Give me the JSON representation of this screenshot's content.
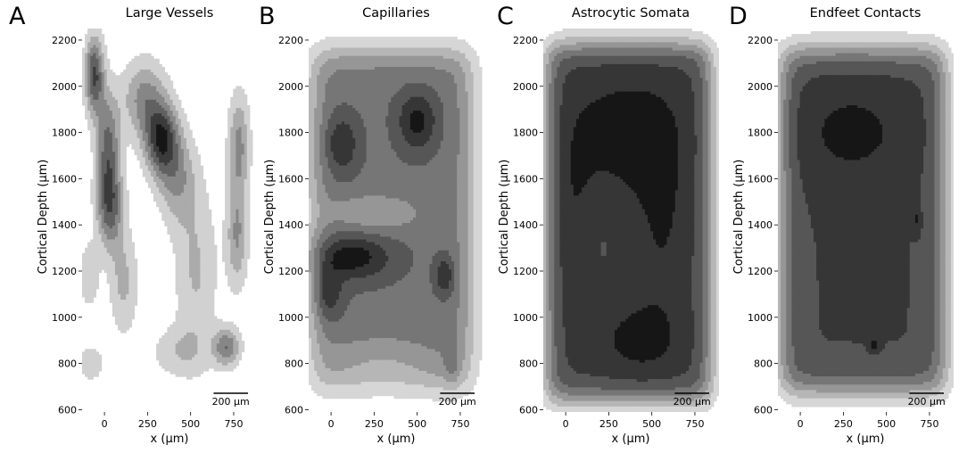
{
  "chart_data": [
    {
      "type": "heatmap",
      "subtype": "filled-contour",
      "panel_letter": "A",
      "title": "Large Vessels",
      "xlabel": "x (µm)",
      "ylabel": "Cortical Depth (µm)",
      "xticks": [
        0,
        250,
        500,
        750
      ],
      "yticks": [
        600,
        800,
        1000,
        1200,
        1400,
        1600,
        1800,
        2000,
        2200
      ],
      "xlim": [
        -130,
        890
      ],
      "ylim": [
        590,
        2250
      ],
      "scale_bar_label": "200 µm",
      "scale_bar_um": 200,
      "colormap": "greys",
      "grid": false,
      "levels": 6,
      "peaks": [
        {
          "x": -60,
          "y": 2050,
          "amp": 0.95,
          "sx": 40,
          "sy": 120
        },
        {
          "x": 20,
          "y": 1750,
          "amp": 0.75,
          "sx": 50,
          "sy": 160
        },
        {
          "x": 30,
          "y": 1480,
          "amp": 0.8,
          "sx": 55,
          "sy": 130
        },
        {
          "x": 110,
          "y": 1150,
          "amp": 0.4,
          "sx": 60,
          "sy": 160
        },
        {
          "x": 330,
          "y": 1770,
          "amp": 1.0,
          "sx": 70,
          "sy": 110
        },
        {
          "x": 230,
          "y": 1950,
          "amp": 0.6,
          "sx": 90,
          "sy": 120
        },
        {
          "x": 420,
          "y": 1600,
          "amp": 0.5,
          "sx": 80,
          "sy": 140
        },
        {
          "x": 530,
          "y": 1200,
          "amp": 0.38,
          "sx": 90,
          "sy": 260
        },
        {
          "x": 780,
          "y": 1750,
          "amp": 0.6,
          "sx": 45,
          "sy": 160
        },
        {
          "x": 770,
          "y": 1350,
          "amp": 0.55,
          "sx": 45,
          "sy": 160
        },
        {
          "x": 710,
          "y": 870,
          "amp": 0.7,
          "sx": 55,
          "sy": 60
        },
        {
          "x": 430,
          "y": 850,
          "amp": 0.3,
          "sx": 120,
          "sy": 80
        },
        {
          "x": -90,
          "y": 1180,
          "amp": 0.35,
          "sx": 40,
          "sy": 100
        },
        {
          "x": -80,
          "y": 800,
          "amp": 0.3,
          "sx": 60,
          "sy": 60
        }
      ],
      "background": 0.02
    },
    {
      "type": "heatmap",
      "subtype": "filled-contour",
      "panel_letter": "B",
      "title": "Capillaries",
      "xlabel": "x (µm)",
      "ylabel": "Cortical Depth (µm)",
      "xticks": [
        0,
        250,
        500,
        750
      ],
      "yticks": [
        600,
        800,
        1000,
        1200,
        1400,
        1600,
        1800,
        2000,
        2200
      ],
      "xlim": [
        -130,
        890
      ],
      "ylim": [
        590,
        2250
      ],
      "scale_bar_label": "200 µm",
      "scale_bar_um": 200,
      "colormap": "greys",
      "grid": false,
      "levels": 7,
      "box": {
        "x0": -110,
        "x1": 810,
        "y0": 700,
        "y1": 2150,
        "level": 0.62,
        "soft": 45
      },
      "peaks": [
        {
          "x": 60,
          "y": 1750,
          "amp": 0.3,
          "sx": 70,
          "sy": 90
        },
        {
          "x": 500,
          "y": 1850,
          "amp": 0.35,
          "sx": 80,
          "sy": 90
        },
        {
          "x": 120,
          "y": 1260,
          "amp": 0.38,
          "sx": 160,
          "sy": 70
        },
        {
          "x": -20,
          "y": 1100,
          "amp": 0.3,
          "sx": 60,
          "sy": 80
        },
        {
          "x": 660,
          "y": 1180,
          "amp": 0.3,
          "sx": 40,
          "sy": 60
        },
        {
          "x": 250,
          "y": 1450,
          "amp": -0.22,
          "sx": 200,
          "sy": 60
        },
        {
          "x": 300,
          "y": 800,
          "amp": -0.2,
          "sx": 250,
          "sy": 90
        },
        {
          "x": 700,
          "y": 780,
          "amp": 0.15,
          "sx": 30,
          "sy": 60
        }
      ],
      "background": 0.02
    },
    {
      "type": "heatmap",
      "subtype": "filled-contour",
      "panel_letter": "C",
      "title": "Astrocytic Somata",
      "xlabel": "x (µm)",
      "ylabel": "Cortical Depth (µm)",
      "xticks": [
        0,
        250,
        500,
        750
      ],
      "yticks": [
        600,
        800,
        1000,
        1200,
        1400,
        1600,
        1800,
        2000,
        2200
      ],
      "xlim": [
        -130,
        890
      ],
      "ylim": [
        590,
        2250
      ],
      "scale_bar_label": "200 µm",
      "scale_bar_um": 200,
      "colormap": "greys",
      "grid": false,
      "levels": 7,
      "box": {
        "x0": -110,
        "x1": 840,
        "y0": 640,
        "y1": 2180,
        "level": 0.82,
        "soft": 38
      },
      "peaks": [
        {
          "x": 350,
          "y": 1800,
          "amp": 0.18,
          "sx": 250,
          "sy": 200
        },
        {
          "x": 50,
          "y": 1400,
          "amp": 0.12,
          "sx": 90,
          "sy": 300
        },
        {
          "x": 420,
          "y": 900,
          "amp": 0.16,
          "sx": 180,
          "sy": 120
        },
        {
          "x": 560,
          "y": 1400,
          "amp": 0.12,
          "sx": 120,
          "sy": 300
        },
        {
          "x": 160,
          "y": 1350,
          "amp": -0.06,
          "sx": 90,
          "sy": 150
        }
      ],
      "background": 0.01
    },
    {
      "type": "heatmap",
      "subtype": "filled-contour",
      "panel_letter": "D",
      "title": "Endfeet Contacts",
      "xlabel": "x (µm)",
      "ylabel": "Cortical Depth (µm)",
      "xticks": [
        0,
        250,
        500,
        750
      ],
      "yticks": [
        600,
        800,
        1000,
        1200,
        1400,
        1600,
        1800,
        2000,
        2200
      ],
      "xlim": [
        -130,
        890
      ],
      "ylim": [
        590,
        2250
      ],
      "scale_bar_label": "200 µm",
      "scale_bar_um": 200,
      "colormap": "greys",
      "grid": false,
      "levels": 7,
      "box": {
        "x0": -110,
        "x1": 840,
        "y0": 680,
        "y1": 2160,
        "level": 0.78,
        "soft": 42
      },
      "peaks": [
        {
          "x": 300,
          "y": 1800,
          "amp": 0.16,
          "sx": 260,
          "sy": 170
        },
        {
          "x": 430,
          "y": 880,
          "amp": 0.22,
          "sx": 20,
          "sy": 20
        },
        {
          "x": 680,
          "y": 1420,
          "amp": 0.16,
          "sx": 15,
          "sy": 40
        }
      ],
      "background": 0.01
    }
  ]
}
